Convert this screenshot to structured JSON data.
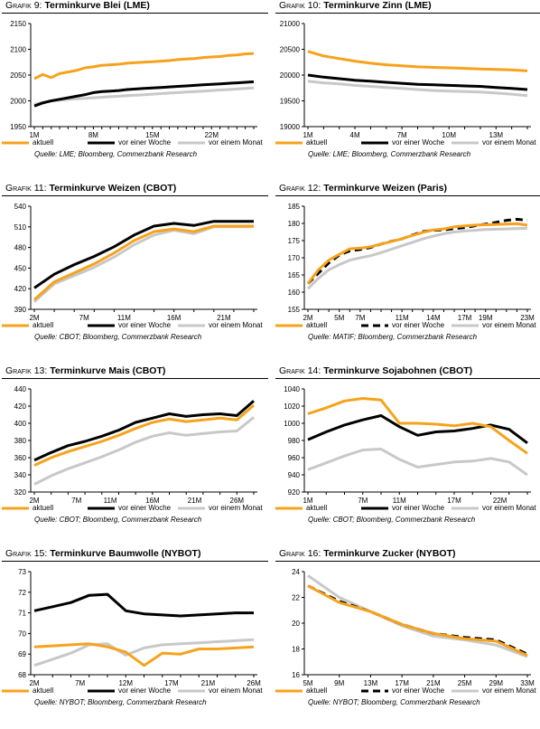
{
  "colors": {
    "aktuell": "#f7a21c",
    "woche": "#000000",
    "monat": "#c8c8c8"
  },
  "panels": [
    {
      "label": "Grafik 9:",
      "title": "Terminkurve Blei (LME)",
      "source": "Quelle: LME; Bloomberg, Commerzbank Research",
      "legend": [
        "aktuell",
        "vor einer Woche",
        "vor einem Monat"
      ],
      "dashed_week": false
    },
    {
      "label": "Grafik 10:",
      "title": "Terminkurve Zinn (LME)",
      "source": "Quelle: LME; Bloomberg, Commerzbank Research",
      "legend": [
        "aktuell",
        "vor einer Woche",
        "vor einem Monat"
      ],
      "dashed_week": false
    },
    {
      "label": "Grafik 11:",
      "title": "Terminkurve Weizen (CBOT)",
      "source": "Quelle: CBOT; Bloomberg, Commerzbank Research",
      "legend": [
        "aktuell",
        "vor einer Woche",
        "vor einem Monat"
      ],
      "dashed_week": false
    },
    {
      "label": "Grafik 12:",
      "title": "Terminkurve Weizen (Paris)",
      "source": "Quelle: MATIF; Bloomberg, Commerzbank Research",
      "legend": [
        "aktuell",
        "vor einer Woche",
        "vor einem Monat"
      ],
      "dashed_week": true
    },
    {
      "label": "Grafik 13:",
      "title": "Terminkurve Mais (CBOT)",
      "source": "Quelle: CBOT; Bloomberg, Commerzbank Research",
      "legend": [
        "aktuell",
        "vor einer Woche",
        "vor einem Monat"
      ],
      "dashed_week": false
    },
    {
      "label": "Grafik 14:",
      "title": "Terminkurve Sojabohnen (CBOT)",
      "source": "Quelle: CBOT; Bloomberg, Commerzbank Research",
      "legend": [
        "aktuell",
        "vor einer Woche",
        "vor einem Monat"
      ],
      "dashed_week": false
    },
    {
      "label": "Grafik 15:",
      "title": "Terminkurve Baumwolle (NYBOT)",
      "source": "Quelle: NYBOT; Bloomberg, Commerzbank Research",
      "legend": [
        "aktuell",
        "vor einer Woche",
        "vor einem Monat"
      ],
      "dashed_week": false
    },
    {
      "label": "Grafik 16:",
      "title": "Terminkurve Zucker (NYBOT)",
      "source": "Quelle: NYBOT; Bloomberg, Commerzbank Research",
      "legend": [
        "aktuell",
        "vor einer Woche",
        "vor einem Monat"
      ],
      "dashed_week": true
    }
  ],
  "chart_data": [
    {
      "type": "line",
      "title": "Terminkurve Blei (LME)",
      "x": [
        1,
        2,
        3,
        4,
        5,
        6,
        7,
        8,
        9,
        10,
        11,
        12,
        13,
        14,
        15,
        16,
        17,
        18,
        19,
        20,
        21,
        22,
        23,
        24,
        25,
        26,
        27
      ],
      "xticks": [
        "1M",
        "8M",
        "15M",
        "22M"
      ],
      "xtick_pos": [
        1,
        8,
        15,
        22
      ],
      "yticks": [
        1950,
        2000,
        2050,
        2100,
        2150
      ],
      "ylim": [
        1950,
        2150
      ],
      "series": [
        {
          "name": "aktuell",
          "values": [
            2043,
            2051,
            2045,
            2053,
            2056,
            2059,
            2064,
            2066,
            2069,
            2070,
            2071,
            2073,
            2074,
            2075,
            2076,
            2077,
            2078,
            2080,
            2081,
            2082,
            2084,
            2085,
            2086,
            2088,
            2089,
            2091,
            2092
          ]
        },
        {
          "name": "vor einer Woche",
          "values": [
            1990,
            1996,
            2000,
            2003,
            2006,
            2009,
            2012,
            2016,
            2018,
            2019,
            2020,
            2022,
            2023,
            2024,
            2025,
            2026,
            2027,
            2028,
            2029,
            2030,
            2031,
            2032,
            2033,
            2034,
            2035,
            2036,
            2037
          ]
        },
        {
          "name": "vor einem Monat",
          "values": [
            1993,
            1997,
            2000,
            2001,
            2003,
            2004,
            2005,
            2006,
            2007,
            2008,
            2009,
            2010,
            2011,
            2012,
            2013,
            2014,
            2015,
            2016,
            2017,
            2018,
            2019,
            2020,
            2021,
            2022,
            2023,
            2024,
            2025
          ]
        }
      ]
    },
    {
      "type": "line",
      "title": "Terminkurve Zinn (LME)",
      "x": [
        1,
        2,
        3,
        4,
        5,
        6,
        7,
        8,
        9,
        10,
        11,
        12,
        13,
        14,
        15
      ],
      "xticks": [
        "1M",
        "4M",
        "7M",
        "10M",
        "13M"
      ],
      "xtick_pos": [
        1,
        4,
        7,
        10,
        13
      ],
      "yticks": [
        19000,
        19500,
        20000,
        20500,
        21000
      ],
      "ylim": [
        19000,
        21000
      ],
      "series": [
        {
          "name": "aktuell",
          "values": [
            20460,
            20370,
            20320,
            20270,
            20230,
            20200,
            20180,
            20160,
            20150,
            20140,
            20130,
            20120,
            20110,
            20100,
            20080
          ]
        },
        {
          "name": "vor einer Woche",
          "values": [
            20000,
            19960,
            19930,
            19900,
            19880,
            19860,
            19840,
            19820,
            19810,
            19800,
            19790,
            19780,
            19760,
            19740,
            19720
          ]
        },
        {
          "name": "vor einem Monat",
          "values": [
            19880,
            19850,
            19830,
            19800,
            19780,
            19760,
            19740,
            19720,
            19700,
            19690,
            19680,
            19670,
            19650,
            19630,
            19600
          ]
        }
      ]
    },
    {
      "type": "line",
      "title": "Terminkurve Weizen (CBOT)",
      "x": [
        2,
        4,
        6,
        8,
        10,
        12,
        14,
        16,
        18,
        20,
        22,
        24
      ],
      "xticks": [
        "2M",
        "7M",
        "11M",
        "16M",
        "21M"
      ],
      "xtick_pos": [
        2,
        7,
        11,
        16,
        21
      ],
      "yticks": [
        390,
        420,
        450,
        480,
        510,
        540
      ],
      "ylim": [
        390,
        540
      ],
      "series": [
        {
          "name": "aktuell",
          "values": [
            404,
            430,
            443,
            456,
            472,
            490,
            503,
            507,
            503,
            511,
            511,
            511
          ]
        },
        {
          "name": "vor einer Woche",
          "values": [
            421,
            441,
            455,
            467,
            481,
            498,
            511,
            515,
            512,
            518,
            518,
            518
          ]
        },
        {
          "name": "vor einem Monat",
          "values": [
            401,
            427,
            439,
            451,
            466,
            484,
            498,
            505,
            500,
            510,
            510,
            510
          ]
        }
      ]
    },
    {
      "type": "line",
      "title": "Terminkurve Weizen (Paris)",
      "x": [
        2,
        3,
        4,
        5,
        6,
        7,
        8,
        9,
        10,
        11,
        12,
        13,
        14,
        15,
        16,
        17,
        18,
        19,
        20,
        21,
        22,
        23
      ],
      "xticks": [
        "2M",
        "5M",
        "7M",
        "11M",
        "14M",
        "17M",
        "19M",
        "23M"
      ],
      "xtick_pos": [
        2,
        5,
        7,
        11,
        14,
        17,
        19,
        23
      ],
      "yticks": [
        155,
        160,
        165,
        170,
        175,
        180,
        185
      ],
      "ylim": [
        155,
        185
      ],
      "series": [
        {
          "name": "aktuell",
          "values": [
            162.5,
            166.5,
            169.3,
            171,
            172.6,
            172.8,
            173.2,
            174.0,
            174.7,
            175.5,
            176.5,
            177.4,
            178.1,
            178.4,
            179.0,
            179.3,
            179.5,
            179.6,
            179.7,
            179.8,
            179.9,
            179.5
          ]
        },
        {
          "name": "vor einer Woche",
          "values": [
            162.5,
            165.5,
            168.5,
            170.8,
            172.0,
            172.4,
            173.0,
            174.0,
            174.8,
            175.5,
            176.6,
            177.6,
            178.0,
            178.1,
            178.5,
            178.8,
            179.3,
            179.8,
            180.3,
            180.9,
            181.2,
            180.9
          ]
        },
        {
          "name": "vor einem Monat",
          "values": [
            161,
            164,
            166.5,
            168.0,
            169.3,
            170.0,
            170.6,
            171.5,
            172.5,
            173.5,
            174.5,
            175.5,
            176.3,
            177.0,
            177.5,
            177.8,
            178.0,
            178.2,
            178.3,
            178.4,
            178.5,
            178.6
          ]
        }
      ]
    },
    {
      "type": "line",
      "title": "Terminkurve Mais (CBOT)",
      "x": [
        2,
        4,
        6,
        8,
        10,
        12,
        14,
        16,
        18,
        20,
        22,
        24,
        26,
        28
      ],
      "xticks": [
        "2M",
        "7M",
        "11M",
        "16M",
        "21M",
        "26M"
      ],
      "xtick_pos": [
        2,
        7,
        11,
        16,
        21,
        26
      ],
      "yticks": [
        320,
        340,
        360,
        380,
        400,
        420,
        440
      ],
      "ylim": [
        320,
        440
      ],
      "series": [
        {
          "name": "aktuell",
          "values": [
            351,
            360,
            367,
            373,
            379,
            386,
            394,
            401,
            405,
            402,
            404,
            406,
            404,
            421
          ]
        },
        {
          "name": "vor einer Woche",
          "values": [
            357,
            366,
            374,
            379,
            385,
            392,
            401,
            406,
            411,
            408,
            410,
            411,
            409,
            426
          ]
        },
        {
          "name": "vor einem Monat",
          "values": [
            329,
            339,
            347,
            354,
            361,
            369,
            378,
            385,
            389,
            386,
            388,
            390,
            391,
            407
          ]
        }
      ]
    },
    {
      "type": "line",
      "title": "Terminkurve Sojabohnen (CBOT)",
      "x": [
        1,
        3,
        5,
        7,
        9,
        11,
        13,
        15,
        17,
        19,
        21,
        23,
        25
      ],
      "xticks": [
        "1M",
        "7M",
        "11M",
        "17M",
        "22M"
      ],
      "xtick_pos": [
        1,
        7,
        11,
        17,
        22
      ],
      "yticks": [
        920,
        940,
        960,
        980,
        1000,
        1020,
        1040
      ],
      "ylim": [
        920,
        1040
      ],
      "series": [
        {
          "name": "aktuell",
          "values": [
            1011,
            1018,
            1026,
            1029,
            1027,
            1000,
            1000,
            999,
            997,
            1000,
            996,
            980,
            965
          ]
        },
        {
          "name": "vor einer Woche",
          "values": [
            981,
            990,
            998,
            1004,
            1009,
            996,
            986,
            990,
            991,
            994,
            998,
            993,
            977
          ]
        },
        {
          "name": "vor einem Monat",
          "values": [
            946,
            954,
            962,
            969,
            970,
            958,
            949,
            952,
            955,
            956,
            959,
            955,
            940
          ]
        }
      ]
    },
    {
      "type": "line",
      "title": "Terminkurve Baumwolle (NYBOT)",
      "x": [
        2,
        4,
        6,
        8,
        10,
        12,
        14,
        16,
        18,
        20,
        22,
        24,
        26
      ],
      "xticks": [
        "2M",
        "7M",
        "12M",
        "17M",
        "21M",
        "26M"
      ],
      "xtick_pos": [
        2,
        7,
        12,
        17,
        21,
        26
      ],
      "yticks": [
        68,
        69,
        70,
        71,
        72,
        73
      ],
      "ylim": [
        68,
        73
      ],
      "series": [
        {
          "name": "aktuell",
          "values": [
            69.35,
            69.4,
            69.45,
            69.5,
            69.35,
            69.1,
            68.45,
            69.05,
            69.0,
            69.25,
            69.25,
            69.3,
            69.35
          ]
        },
        {
          "name": "vor einer Woche",
          "values": [
            71.1,
            71.3,
            71.5,
            71.85,
            71.9,
            71.1,
            70.95,
            70.9,
            70.85,
            70.9,
            70.95,
            71.0,
            71.0
          ]
        },
        {
          "name": "vor einem Monat",
          "values": [
            68.45,
            68.75,
            69.05,
            69.45,
            69.5,
            68.95,
            69.3,
            69.45,
            69.5,
            69.55,
            69.6,
            69.65,
            69.7
          ]
        }
      ]
    },
    {
      "type": "line",
      "title": "Terminkurve Zucker (NYBOT)",
      "x": [
        5,
        9,
        13,
        17,
        21,
        25,
        29,
        33
      ],
      "xticks": [
        "5M",
        "9M",
        "13M",
        "17M",
        "21M",
        "25M",
        "29M",
        "33M"
      ],
      "xtick_pos": [
        5,
        9,
        13,
        17,
        21,
        25,
        29,
        33
      ],
      "yticks": [
        16.0,
        18.0,
        20.0,
        22.0,
        24.0
      ],
      "ylim": [
        16,
        24
      ],
      "series": [
        {
          "name": "aktuell",
          "values": [
            22.9,
            21.6,
            20.9,
            19.9,
            19.2,
            18.8,
            18.6,
            17.5
          ]
        },
        {
          "name": "vor einer Woche",
          "values": [
            22.9,
            21.7,
            20.9,
            19.9,
            19.2,
            18.9,
            18.7,
            17.6
          ]
        },
        {
          "name": "vor einem Monat",
          "values": [
            23.7,
            22.0,
            20.9,
            19.8,
            19.0,
            18.7,
            18.3,
            17.4
          ]
        }
      ]
    }
  ]
}
